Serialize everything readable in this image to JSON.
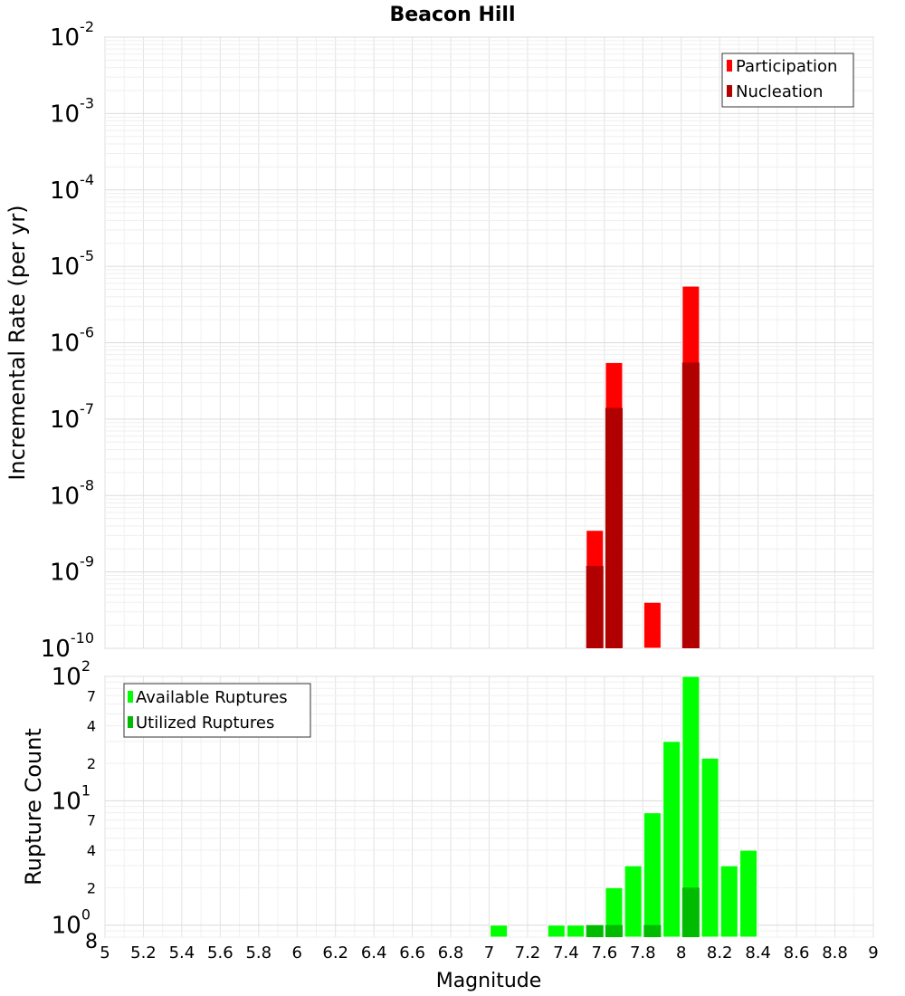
{
  "title": "Beacon Hill",
  "xlabel": "Magnitude",
  "x_ticks": [
    "5",
    "5.2",
    "5.4",
    "5.6",
    "5.8",
    "6",
    "6.2",
    "6.4",
    "6.6",
    "6.8",
    "7",
    "7.2",
    "7.4",
    "7.6",
    "7.8",
    "8",
    "8.2",
    "8.4",
    "8.6",
    "8.8",
    "9"
  ],
  "chart_data": [
    {
      "type": "bar",
      "title": "Beacon Hill",
      "ylabel": "Incremental Rate (per yr)",
      "xlabel": "",
      "xlim": [
        5,
        9
      ],
      "ylim": [
        1e-10,
        0.01
      ],
      "yscale": "log",
      "grid": true,
      "legend_position": "top-right",
      "y_ticks": [
        {
          "base": "10",
          "exp": "-10",
          "value": 1e-10
        },
        {
          "base": "10",
          "exp": "-9",
          "value": 1e-09
        },
        {
          "base": "10",
          "exp": "-8",
          "value": 1e-08
        },
        {
          "base": "10",
          "exp": "-7",
          "value": 1e-07
        },
        {
          "base": "10",
          "exp": "-6",
          "value": 1e-06
        },
        {
          "base": "10",
          "exp": "-5",
          "value": 1e-05
        },
        {
          "base": "10",
          "exp": "-4",
          "value": 0.0001
        },
        {
          "base": "10",
          "exp": "-3",
          "value": 0.001
        },
        {
          "base": "10",
          "exp": "-2",
          "value": 0.01
        }
      ],
      "series": [
        {
          "name": "Participation",
          "color": "#ff0000",
          "x": [
            7.55,
            7.65,
            7.85,
            8.05
          ],
          "values": [
            3.5e-09,
            5.5e-07,
            4e-10,
            5.5e-06
          ]
        },
        {
          "name": "Nucleation",
          "color": "#b00000",
          "x": [
            7.55,
            7.65,
            8.05
          ],
          "values": [
            1.2e-09,
            1.4e-07,
            5.5e-07
          ]
        }
      ]
    },
    {
      "type": "bar",
      "title": "",
      "ylabel": "Rupture Count",
      "xlabel": "Magnitude",
      "xlim": [
        5,
        9
      ],
      "ylim": [
        0.8,
        100
      ],
      "yscale": "log",
      "grid": true,
      "legend_position": "top-left",
      "y_ticks": [
        {
          "base": "10",
          "exp": "0",
          "value": 1
        },
        {
          "base": "10",
          "exp": "1",
          "value": 10
        },
        {
          "base": "10",
          "exp": "2",
          "value": 100
        }
      ],
      "y_minor_labels": [
        {
          "label": "8",
          "value": 0.8
        },
        {
          "label": "2",
          "value": 2
        },
        {
          "label": "4",
          "value": 4
        },
        {
          "label": "7",
          "value": 7
        },
        {
          "label": "2",
          "value": 20
        },
        {
          "label": "4",
          "value": 40
        },
        {
          "label": "7",
          "value": 70
        }
      ],
      "series": [
        {
          "name": "Available Ruptures",
          "color": "#00ff00",
          "x": [
            7.05,
            7.35,
            7.45,
            7.55,
            7.65,
            7.75,
            7.85,
            7.95,
            8.05,
            8.15,
            8.25,
            8.35
          ],
          "values": [
            1,
            1,
            1,
            1,
            2,
            3,
            8,
            30,
            100,
            22,
            3,
            4
          ]
        },
        {
          "name": "Utilized Ruptures",
          "color": "#00bb00",
          "x": [
            7.55,
            7.65,
            7.85,
            8.05
          ],
          "values": [
            1,
            1,
            1,
            2
          ]
        }
      ]
    }
  ]
}
